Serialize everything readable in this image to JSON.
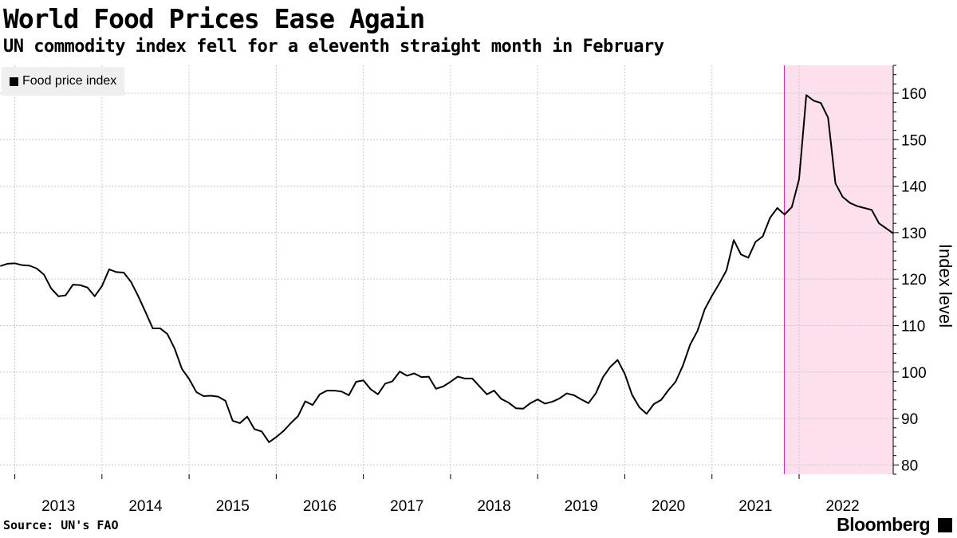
{
  "chart_data": {
    "type": "line",
    "title": "World Food Prices Ease Again",
    "subtitle": "UN commodity index fell for a eleventh straight month in February",
    "source": "Source: UN's FAO",
    "brand": "Bloomberg",
    "ylabel": "Index level",
    "ylim": [
      78,
      166
    ],
    "yticks": [
      80,
      90,
      100,
      110,
      120,
      130,
      140,
      150,
      160
    ],
    "xlim": [
      2012.83,
      2023.08
    ],
    "xticks": [
      2013,
      2014,
      2015,
      2016,
      2017,
      2018,
      2019,
      2020,
      2021,
      2022
    ],
    "grid": true,
    "legend_position": "top-left",
    "line_color": "#000000",
    "shade_color": "#fde0ee",
    "shade_border_color": "#c2219f",
    "shaded_range": [
      2021.83,
      2023.08
    ],
    "series": [
      {
        "name": "Food price index",
        "x": [
          2012.833,
          2012.917,
          2013.0,
          2013.083,
          2013.167,
          2013.25,
          2013.333,
          2013.417,
          2013.5,
          2013.583,
          2013.667,
          2013.75,
          2013.833,
          2013.917,
          2014.0,
          2014.083,
          2014.167,
          2014.25,
          2014.333,
          2014.417,
          2014.5,
          2014.583,
          2014.667,
          2014.75,
          2014.833,
          2014.917,
          2015.0,
          2015.083,
          2015.167,
          2015.25,
          2015.333,
          2015.417,
          2015.5,
          2015.583,
          2015.667,
          2015.75,
          2015.833,
          2015.917,
          2016.0,
          2016.083,
          2016.167,
          2016.25,
          2016.333,
          2016.417,
          2016.5,
          2016.583,
          2016.667,
          2016.75,
          2016.833,
          2016.917,
          2017.0,
          2017.083,
          2017.167,
          2017.25,
          2017.333,
          2017.417,
          2017.5,
          2017.583,
          2017.667,
          2017.75,
          2017.833,
          2017.917,
          2018.0,
          2018.083,
          2018.167,
          2018.25,
          2018.333,
          2018.417,
          2018.5,
          2018.583,
          2018.667,
          2018.75,
          2018.833,
          2018.917,
          2019.0,
          2019.083,
          2019.167,
          2019.25,
          2019.333,
          2019.417,
          2019.5,
          2019.583,
          2019.667,
          2019.75,
          2019.833,
          2019.917,
          2020.0,
          2020.083,
          2020.167,
          2020.25,
          2020.333,
          2020.417,
          2020.5,
          2020.583,
          2020.667,
          2020.75,
          2020.833,
          2020.917,
          2021.0,
          2021.083,
          2021.167,
          2021.25,
          2021.333,
          2021.417,
          2021.5,
          2021.583,
          2021.667,
          2021.75,
          2021.833,
          2021.917,
          2022.0,
          2022.083,
          2022.167,
          2022.25,
          2022.333,
          2022.417,
          2022.5,
          2022.583,
          2022.667,
          2022.75,
          2022.833,
          2022.917,
          2023.0,
          2023.083
        ],
        "values": [
          122.8,
          123.3,
          123.4,
          123.0,
          122.9,
          122.3,
          121.0,
          118.0,
          116.3,
          116.5,
          118.8,
          118.7,
          118.2,
          116.3,
          118.5,
          122.1,
          121.5,
          121.4,
          119.4,
          116.3,
          112.9,
          109.4,
          109.4,
          108.2,
          105.1,
          100.7,
          98.5,
          95.7,
          94.8,
          94.9,
          94.7,
          93.8,
          89.5,
          89.0,
          90.4,
          87.7,
          87.2,
          84.9,
          86.0,
          87.3,
          89.0,
          90.5,
          93.7,
          92.9,
          95.2,
          96.0,
          96.0,
          95.8,
          95.0,
          97.9,
          98.2,
          96.3,
          95.2,
          97.5,
          98.0,
          100.1,
          99.2,
          99.7,
          98.9,
          99.0,
          96.4,
          96.9,
          97.9,
          99.0,
          98.6,
          98.6,
          96.9,
          95.2,
          96.0,
          94.2,
          93.4,
          92.2,
          92.1,
          93.3,
          94.1,
          93.2,
          93.6,
          94.3,
          95.4,
          95.0,
          94.1,
          93.3,
          95.4,
          98.9,
          101.1,
          102.6,
          99.6,
          95.1,
          92.4,
          91.0,
          93.1,
          94.0,
          96.1,
          97.9,
          101.4,
          105.9,
          108.8,
          113.5,
          116.4,
          119.0,
          121.9,
          128.4,
          125.3,
          124.6,
          128.0,
          129.2,
          133.2,
          135.3,
          133.9,
          135.5,
          141.5,
          159.6,
          158.4,
          157.9,
          154.7,
          140.6,
          137.7,
          136.4,
          135.7,
          135.3,
          134.9,
          132.0,
          130.9,
          129.8
        ]
      }
    ]
  }
}
